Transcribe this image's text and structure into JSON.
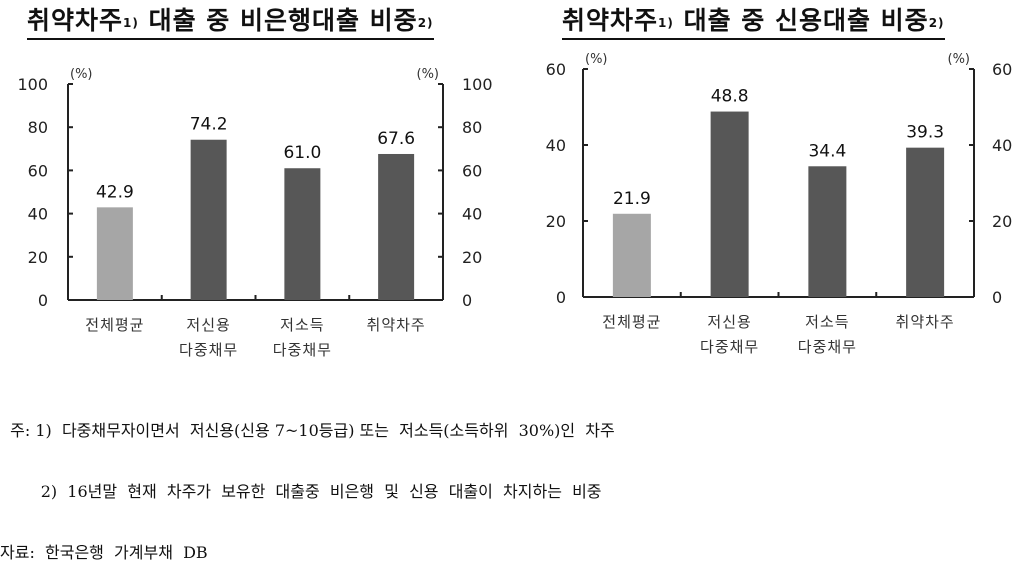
{
  "charts": [
    {
      "title": "취약차주",
      "title_sup1": "1)",
      "title_rest": " 대출 중 비은행대출 비중",
      "title_sup2": "2)",
      "unit_left": "(%)",
      "unit_right": "(%)"
    },
    {
      "title": "취약차주",
      "title_sup1": "1)",
      "title_rest": " 대출 중 신용대출 비중",
      "title_sup2": "2)",
      "unit_left": "(%)",
      "unit_right": "(%)"
    }
  ],
  "chart_data": [
    {
      "type": "bar",
      "title": "취약차주1) 대출 중 비은행대출 비중2)",
      "categories": [
        "전체평균",
        "저신용 다중채무",
        "저소득 다중채무",
        "취약차주"
      ],
      "category_lines": [
        [
          "전체평균"
        ],
        [
          "저신용",
          "다중채무"
        ],
        [
          "저소득",
          "다중채무"
        ],
        [
          "취약차주"
        ]
      ],
      "values": [
        42.9,
        74.2,
        61.0,
        67.6
      ],
      "value_labels": [
        "42.9",
        "74.2",
        "61.0",
        "67.6"
      ],
      "bar_colors": [
        "#a6a6a6",
        "#575757",
        "#575757",
        "#575757"
      ],
      "xlabel": "",
      "ylabel": "(%)",
      "ylim": [
        0,
        100
      ],
      "yticks": [
        0,
        20,
        40,
        60,
        80,
        100
      ],
      "dual_axis": true,
      "grid": false,
      "legend": "none"
    },
    {
      "type": "bar",
      "title": "취약차주1) 대출 중 신용대출 비중2)",
      "categories": [
        "전체평균",
        "저신용 다중채무",
        "저소득 다중채무",
        "취약차주"
      ],
      "category_lines": [
        [
          "전체평균"
        ],
        [
          "저신용",
          "다중채무"
        ],
        [
          "저소득",
          "다중채무"
        ],
        [
          "취약차주"
        ]
      ],
      "values": [
        21.9,
        48.8,
        34.4,
        39.3
      ],
      "value_labels": [
        "21.9",
        "48.8",
        "34.4",
        "39.3"
      ],
      "bar_colors": [
        "#a6a6a6",
        "#575757",
        "#575757",
        "#575757"
      ],
      "xlabel": "",
      "ylabel": "(%)",
      "ylim": [
        0,
        60
      ],
      "yticks": [
        0,
        20,
        40,
        60
      ],
      "dual_axis": true,
      "grid": false,
      "legend": "none"
    }
  ],
  "notes": {
    "line1": "  주: 1)  다중채무자이면서  저신용(신용 7~10등급) 또는  저소득(소득하위  30%)인  차주",
    "line2": "        2)  16년말  현재  차주가  보유한  대출중  비은행  및  신용  대출이  차지하는  비중",
    "line3": "자료:  한국은행  가계부채  DB"
  }
}
